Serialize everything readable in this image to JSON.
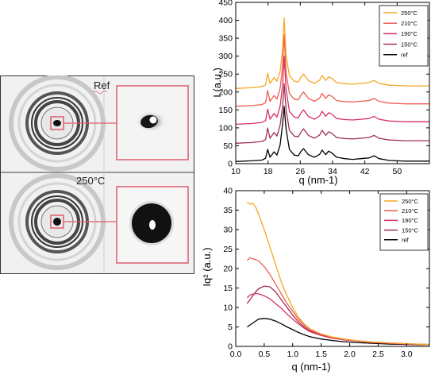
{
  "xray": {
    "top_label": "Ref",
    "bottom_label": "250°C",
    "inset_color": "#e05c6e"
  },
  "legend_colors": {
    "250°C": "#f6a623",
    "210°C": "#ef5b53",
    "190°C": "#d7315f",
    "150°C": "#a02f52",
    "ref": "#000000"
  },
  "chart_data": [
    {
      "type": "line",
      "xlabel": "q (nm-1)",
      "ylabel": "I (a.u.)",
      "xlim": [
        10,
        58
      ],
      "ylim": [
        0,
        450
      ],
      "xticks": [
        "10",
        "18",
        "26",
        "34",
        "42",
        "50"
      ],
      "xtick_values": [
        10,
        18,
        26,
        34,
        42,
        50
      ],
      "yticks": [
        "0",
        "50",
        "100",
        "150",
        "200",
        "250",
        "300",
        "350",
        "400",
        "450"
      ],
      "ytick_values": [
        0,
        50,
        100,
        150,
        200,
        250,
        300,
        350,
        400,
        450
      ],
      "grid": false,
      "legend_position": "top-right",
      "series": [
        {
          "name": "250°C",
          "color": "#f6a623",
          "baseline": 210,
          "x": [
            10,
            14,
            16.5,
            17.4,
            17.9,
            18.5,
            19.5,
            20.2,
            21,
            21.6,
            22,
            22.5,
            23.3,
            24.5,
            25.5,
            26.2,
            26.8,
            28,
            29.5,
            30.8,
            31.4,
            32.3,
            33,
            33.8,
            35,
            37,
            39,
            41,
            43,
            44.3,
            45.5,
            48,
            52,
            58
          ],
          "y": [
            210,
            212,
            215,
            220,
            252,
            224,
            240,
            230,
            257,
            318,
            407,
            300,
            246,
            230,
            228,
            242,
            250,
            232,
            224,
            233,
            246,
            232,
            242,
            238,
            226,
            223,
            222,
            224,
            226,
            232,
            224,
            219,
            217,
            217
          ]
        },
        {
          "name": "210°C",
          "color": "#ef5b53",
          "baseline": 160,
          "x": [
            10,
            14,
            16.5,
            17.4,
            17.9,
            18.5,
            19.5,
            20.2,
            21,
            21.6,
            22,
            22.5,
            23.3,
            24.5,
            25.5,
            26.2,
            26.8,
            28,
            29.5,
            30.8,
            31.4,
            32.3,
            33,
            33.8,
            35,
            37,
            39,
            41,
            43,
            44.3,
            45.5,
            48,
            52,
            58
          ],
          "y": [
            160,
            162,
            165,
            170,
            204,
            174,
            190,
            180,
            210,
            270,
            360,
            252,
            196,
            180,
            178,
            192,
            200,
            182,
            174,
            183,
            196,
            182,
            192,
            188,
            176,
            173,
            172,
            174,
            176,
            182,
            174,
            169,
            167,
            167
          ]
        },
        {
          "name": "190°C",
          "color": "#d7315f",
          "baseline": 110,
          "x": [
            10,
            14,
            16.5,
            17.4,
            17.9,
            18.5,
            19.5,
            20.2,
            21,
            21.6,
            22,
            22.5,
            23.3,
            24.5,
            25.5,
            26.2,
            26.8,
            28,
            29.5,
            30.8,
            31.4,
            32.3,
            33,
            33.8,
            35,
            37,
            39,
            41,
            43,
            44.3,
            45.5,
            48,
            52,
            58
          ],
          "y": [
            110,
            112,
            115,
            120,
            152,
            124,
            140,
            130,
            160,
            218,
            300,
            205,
            146,
            130,
            128,
            142,
            150,
            132,
            124,
            133,
            146,
            132,
            142,
            138,
            126,
            123,
            122,
            124,
            126,
            132,
            124,
            119,
            117,
            117
          ]
        },
        {
          "name": "150°C",
          "color": "#a02f52",
          "baseline": 57,
          "x": [
            10,
            14,
            16.5,
            17.4,
            17.9,
            18.5,
            19.5,
            20.2,
            21,
            21.6,
            22,
            22.5,
            23.3,
            24.5,
            25.5,
            26.2,
            26.8,
            28,
            29.5,
            30.8,
            31.4,
            32.3,
            33,
            33.8,
            35,
            37,
            39,
            41,
            43,
            44.3,
            45.5,
            48,
            52,
            58
          ],
          "y": [
            57,
            59,
            62,
            67,
            99,
            71,
            87,
            77,
            107,
            160,
            223,
            150,
            93,
            77,
            75,
            89,
            97,
            79,
            71,
            80,
            93,
            79,
            89,
            85,
            73,
            70,
            69,
            71,
            73,
            79,
            71,
            66,
            64,
            64
          ]
        },
        {
          "name": "ref",
          "color": "#000000",
          "baseline": 6,
          "x": [
            10,
            14,
            16.5,
            17.4,
            17.9,
            18.5,
            19.5,
            20.2,
            21,
            21.6,
            22,
            22.5,
            23.3,
            24.5,
            25.5,
            26.2,
            26.8,
            28,
            29.5,
            30.8,
            31.4,
            32.3,
            33,
            33.8,
            35,
            37,
            39,
            41,
            43,
            44.3,
            45.5,
            48,
            52,
            58
          ],
          "y": [
            6,
            8,
            10,
            15,
            40,
            18,
            33,
            24,
            52,
            110,
            160,
            95,
            40,
            24,
            22,
            35,
            42,
            25,
            18,
            26,
            38,
            25,
            35,
            30,
            18,
            14,
            12,
            14,
            16,
            22,
            14,
            9,
            7,
            7
          ]
        }
      ]
    },
    {
      "type": "line",
      "xlabel": "q (nm-1)",
      "ylabel": "Iq² (a.u.)",
      "xlim": [
        0,
        3.4
      ],
      "ylim": [
        0,
        40
      ],
      "xticks": [
        "0.0",
        "0.5",
        "1.0",
        "1.5",
        "2.0",
        "2.5",
        "3.0"
      ],
      "xtick_values": [
        0,
        0.5,
        1.0,
        1.5,
        2.0,
        2.5,
        3.0
      ],
      "yticks": [
        "0",
        "5",
        "10",
        "15",
        "20",
        "25",
        "30",
        "35",
        "40"
      ],
      "ytick_values": [
        0,
        5,
        10,
        15,
        20,
        25,
        30,
        35,
        40
      ],
      "grid": false,
      "legend_position": "top-right",
      "series": [
        {
          "name": "250°C",
          "color": "#f6a623",
          "x": [
            0.2,
            0.25,
            0.3,
            0.35,
            0.4,
            0.5,
            0.6,
            0.7,
            0.8,
            0.9,
            1.0,
            1.1,
            1.2,
            1.3,
            1.5,
            1.7,
            1.9,
            2.1,
            2.4,
            2.7,
            3.0,
            3.4
          ],
          "y": [
            37,
            36.5,
            36.8,
            35.8,
            34,
            30,
            25.5,
            21,
            16.5,
            13,
            10,
            7.5,
            5.8,
            4.5,
            3.2,
            2.4,
            1.9,
            1.5,
            1.1,
            0.9,
            0.7,
            0.5
          ]
        },
        {
          "name": "210°C",
          "color": "#ef5b53",
          "x": [
            0.2,
            0.25,
            0.3,
            0.35,
            0.4,
            0.5,
            0.6,
            0.7,
            0.8,
            0.9,
            1.0,
            1.1,
            1.2,
            1.3,
            1.5,
            1.7,
            1.9,
            2.1,
            2.4,
            2.7,
            3.0,
            3.4
          ],
          "y": [
            22,
            22.8,
            22.5,
            22.3,
            22,
            20.5,
            18.5,
            16,
            13.5,
            11,
            9,
            7,
            5.5,
            4.3,
            3.1,
            2.3,
            1.8,
            1.5,
            1.1,
            0.9,
            0.7,
            0.5
          ]
        },
        {
          "name": "190°C",
          "color": "#d7315f",
          "x": [
            0.2,
            0.25,
            0.3,
            0.35,
            0.4,
            0.5,
            0.6,
            0.7,
            0.8,
            0.9,
            1.0,
            1.1,
            1.2,
            1.3,
            1.5,
            1.7,
            1.9,
            2.1,
            2.4,
            2.7,
            3.0,
            3.4
          ],
          "y": [
            12.5,
            13.2,
            13.4,
            13.6,
            13.5,
            13,
            12.2,
            11,
            9.8,
            8.3,
            7,
            5.8,
            4.7,
            3.8,
            2.8,
            2.1,
            1.7,
            1.4,
            1.0,
            0.8,
            0.6,
            0.5
          ]
        },
        {
          "name": "150°C",
          "color": "#a02f52",
          "x": [
            0.2,
            0.25,
            0.3,
            0.35,
            0.4,
            0.5,
            0.6,
            0.7,
            0.8,
            0.9,
            1.0,
            1.1,
            1.2,
            1.3,
            1.5,
            1.7,
            1.9,
            2.1,
            2.4,
            2.7,
            3.0,
            3.4
          ],
          "y": [
            11,
            12,
            13,
            14,
            14.8,
            15.5,
            15.3,
            14,
            12,
            10,
            8,
            6.3,
            5,
            4,
            2.9,
            2.2,
            1.7,
            1.4,
            1.0,
            0.8,
            0.6,
            0.5
          ]
        },
        {
          "name": "ref",
          "color": "#000000",
          "x": [
            0.2,
            0.25,
            0.3,
            0.35,
            0.4,
            0.5,
            0.6,
            0.7,
            0.8,
            0.9,
            1.0,
            1.1,
            1.2,
            1.3,
            1.5,
            1.7,
            1.9,
            2.1,
            2.4,
            2.7,
            3.0,
            3.4
          ],
          "y": [
            5,
            5.5,
            6,
            6.5,
            7,
            7.2,
            7,
            6.5,
            5.8,
            5,
            4.3,
            3.6,
            3,
            2.5,
            1.9,
            1.5,
            1.2,
            1.0,
            0.8,
            0.6,
            0.5,
            0.4
          ]
        }
      ]
    }
  ]
}
